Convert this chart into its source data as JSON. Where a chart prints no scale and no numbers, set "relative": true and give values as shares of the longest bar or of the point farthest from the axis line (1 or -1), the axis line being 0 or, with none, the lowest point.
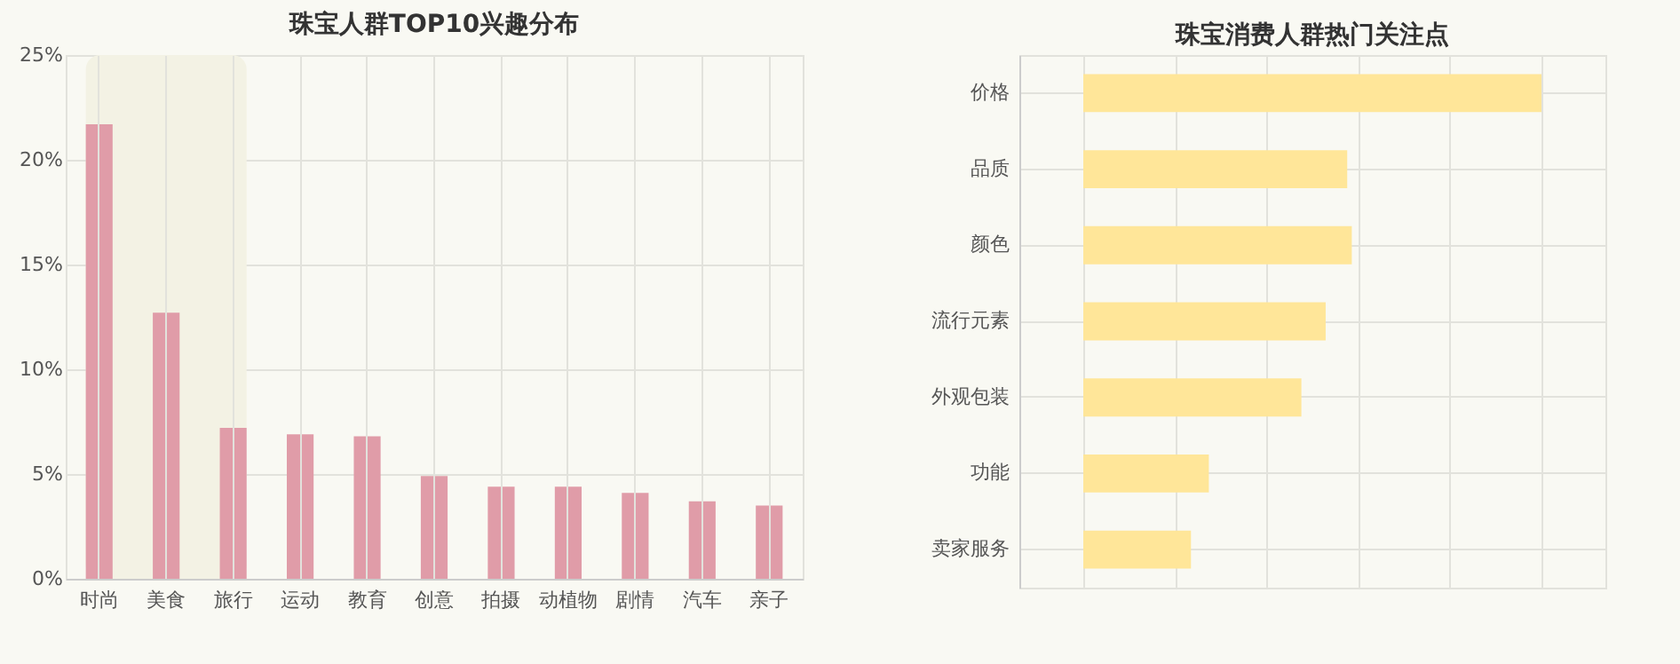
{
  "chart_data": [
    {
      "type": "bar",
      "title": "珠宝人群TOP10兴趣分布",
      "categories": [
        "时尚",
        "美食",
        "旅行",
        "运动",
        "教育",
        "创意",
        "拍摄",
        "动植物",
        "剧情",
        "汽车",
        "亲子"
      ],
      "values": [
        21.7,
        12.7,
        7.2,
        6.9,
        6.8,
        4.9,
        4.4,
        4.4,
        4.1,
        3.7,
        3.5
      ],
      "color": "#e09ca8",
      "ylim": [
        0,
        25
      ],
      "yticks": [
        {
          "value": 0,
          "label": "0%"
        },
        {
          "value": 5,
          "label": "5%"
        },
        {
          "value": 10,
          "label": "10%"
        },
        {
          "value": 15,
          "label": "15%"
        },
        {
          "value": 20,
          "label": "20%"
        },
        {
          "value": 25,
          "label": "25%"
        }
      ],
      "grid": true,
      "bands": [
        {
          "axis": "x",
          "from": "时尚",
          "to": "旅行",
          "color": "#f3f2e4"
        }
      ]
    },
    {
      "type": "bar",
      "orientation": "horizontal",
      "relative": true,
      "title": "珠宝消费人群热门关注点",
      "categories": [
        "价格",
        "品质",
        "颜色",
        "流行元素",
        "外观包装",
        "功能",
        "卖家服务"
      ],
      "values": [
        1,
        0.576,
        0.586,
        0.529,
        0.476,
        0.274,
        0.235
      ],
      "color": "#ffe699",
      "grid": true
    }
  ]
}
